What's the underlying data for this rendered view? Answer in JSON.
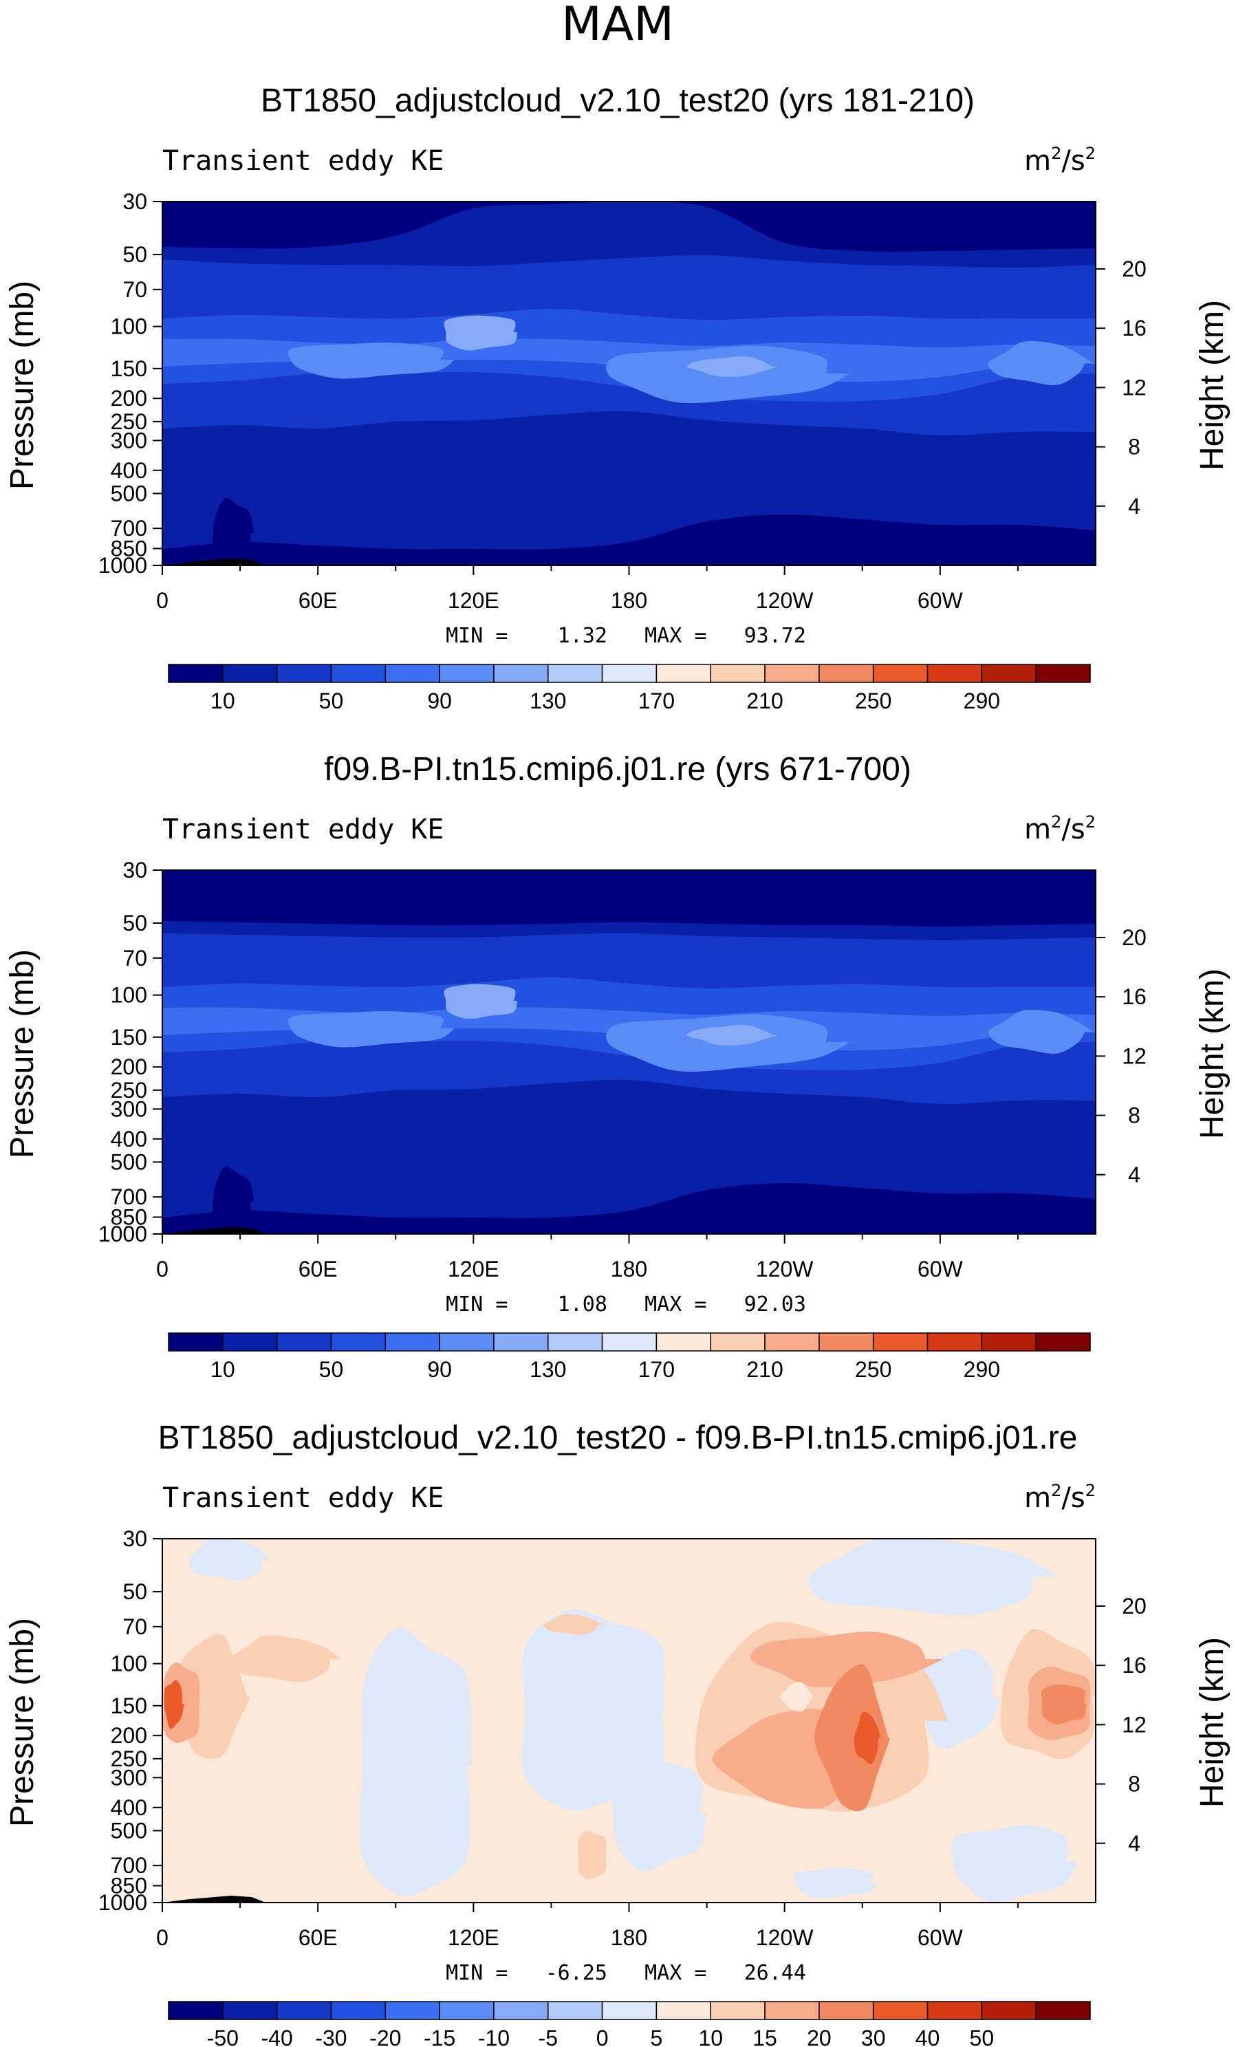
{
  "page_title": "MAM",
  "chart_data": [
    {
      "type": "contour",
      "title": "BT1850_adjustcloud_v2.10_test20 (yrs 181-210)",
      "left_label": "Transient eddy KE",
      "units_base": "m",
      "units_exp1": "2",
      "units_mid": "/s",
      "units_exp2": "2",
      "ylabel": "Pressure (mb)",
      "ylabel_right": "Height (km)",
      "pressure_ticks": [
        30,
        50,
        70,
        100,
        150,
        200,
        250,
        300,
        400,
        500,
        700,
        850,
        1000
      ],
      "height_ticks": [
        4,
        8,
        12,
        16,
        20
      ],
      "x_ticks": [
        "0",
        "60E",
        "120E",
        "180",
        "120W",
        "60W"
      ],
      "stats": "MIN =    1.32   MAX =   93.72",
      "min": 1.32,
      "max": 93.72,
      "colorbar_labels": [
        "10",
        "50",
        "90",
        "130",
        "170",
        "210",
        "250",
        "290"
      ],
      "colors": [
        "#00007f",
        "#0a1fa8",
        "#1538c8",
        "#2452e0",
        "#3c6ef2",
        "#5a8cf5",
        "#86aaf6",
        "#b3cbf8",
        "#dde9fb",
        "#fde9d9",
        "#fbcfb4",
        "#f7ad8c",
        "#f28a61",
        "#ea5a2b",
        "#d83a13",
        "#b41f0c",
        "#7f0000"
      ]
    },
    {
      "type": "contour",
      "title": "f09.B-PI.tn15.cmip6.j01.re (yrs 671-700)",
      "left_label": "Transient eddy KE",
      "units_base": "m",
      "units_exp1": "2",
      "units_mid": "/s",
      "units_exp2": "2",
      "ylabel": "Pressure (mb)",
      "ylabel_right": "Height (km)",
      "pressure_ticks": [
        30,
        50,
        70,
        100,
        150,
        200,
        250,
        300,
        400,
        500,
        700,
        850,
        1000
      ],
      "height_ticks": [
        4,
        8,
        12,
        16,
        20
      ],
      "x_ticks": [
        "0",
        "60E",
        "120E",
        "180",
        "120W",
        "60W"
      ],
      "stats": "MIN =    1.08   MAX =   92.03",
      "min": 1.08,
      "max": 92.03,
      "colorbar_labels": [
        "10",
        "50",
        "90",
        "130",
        "170",
        "210",
        "250",
        "290"
      ],
      "colors": [
        "#00007f",
        "#0a1fa8",
        "#1538c8",
        "#2452e0",
        "#3c6ef2",
        "#5a8cf5",
        "#86aaf6",
        "#b3cbf8",
        "#dde9fb",
        "#fde9d9",
        "#fbcfb4",
        "#f7ad8c",
        "#f28a61",
        "#ea5a2b",
        "#d83a13",
        "#b41f0c",
        "#7f0000"
      ]
    },
    {
      "type": "contour",
      "title": "BT1850_adjustcloud_v2.10_test20 - f09.B-PI.tn15.cmip6.j01.re",
      "left_label": "Transient eddy KE",
      "units_base": "m",
      "units_exp1": "2",
      "units_mid": "/s",
      "units_exp2": "2",
      "ylabel": "Pressure (mb)",
      "ylabel_right": "Height (km)",
      "pressure_ticks": [
        30,
        50,
        70,
        100,
        150,
        200,
        250,
        300,
        400,
        500,
        700,
        850,
        1000
      ],
      "height_ticks": [
        4,
        8,
        12,
        16,
        20
      ],
      "x_ticks": [
        "0",
        "60E",
        "120E",
        "180",
        "120W",
        "60W"
      ],
      "stats": "MIN =   -6.25   MAX =   26.44",
      "min": -6.25,
      "max": 26.44,
      "colorbar_labels": [
        "-50",
        "-40",
        "-30",
        "-20",
        "-15",
        "-10",
        "-5",
        "0",
        "5",
        "10",
        "15",
        "20",
        "30",
        "40",
        "50"
      ],
      "colors": [
        "#00007f",
        "#0a1fa8",
        "#1538c8",
        "#2452e0",
        "#3c6ef2",
        "#5a8cf5",
        "#86aaf6",
        "#b3cbf8",
        "#dde9fb",
        "#fde9d9",
        "#fbcfb4",
        "#f7ad8c",
        "#f28a61",
        "#ea5a2b",
        "#d83a13",
        "#b41f0c",
        "#7f0000"
      ]
    }
  ]
}
